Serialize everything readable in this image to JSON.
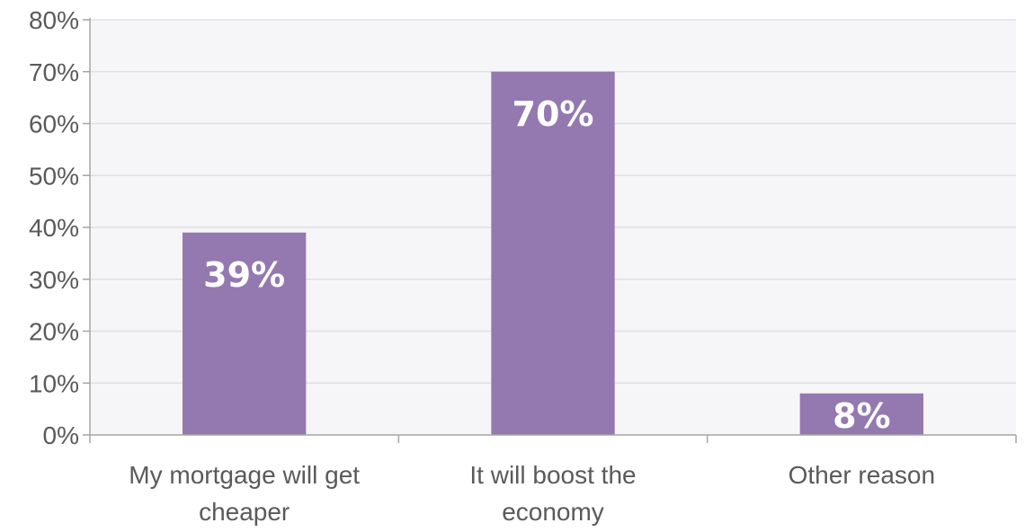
{
  "chart_data": {
    "type": "bar",
    "categories": [
      [
        "My mortgage will get",
        "cheaper"
      ],
      [
        "It will boost the",
        "economy"
      ],
      [
        "Other reason"
      ]
    ],
    "values": [
      39,
      70,
      8
    ],
    "data_labels": [
      "39%",
      "70%",
      "8%"
    ],
    "y_ticks": [
      "0%",
      "10%",
      "20%",
      "30%",
      "40%",
      "50%",
      "60%",
      "70%",
      "80%"
    ],
    "ylim": [
      0,
      80
    ],
    "grid": true,
    "legend": "none",
    "title": "",
    "xlabel": "",
    "ylabel": ""
  },
  "colors": {
    "bar": "#9479b0",
    "plot_background": "#f6f5f8",
    "gridline": "#e0dfe3",
    "axis": "#a6a6a6"
  }
}
